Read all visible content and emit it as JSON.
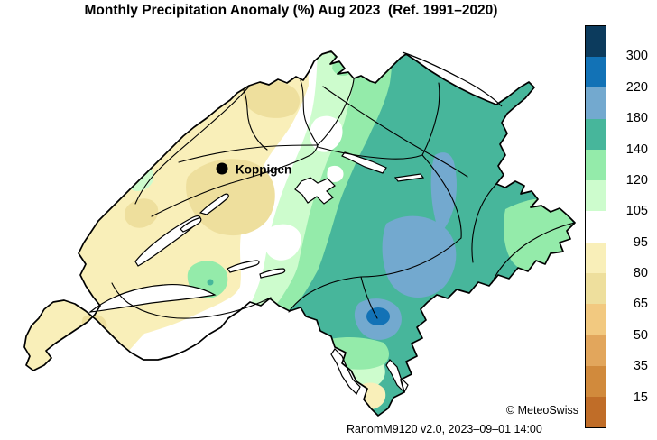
{
  "title": "Monthly Precipitation Anomaly (%) Aug 2023  (Ref. 1991–2020)",
  "map": {
    "country": "Switzerland",
    "marker": {
      "label": "Koppigen"
    }
  },
  "palette": {
    "navy": "#0c3b5d",
    "blue": "#1272b6",
    "steel_blue": "#73a9cf",
    "teal": "#47b69b",
    "green": "#94ebaa",
    "pale_green": "#cdfccd",
    "white": "#ffffff",
    "pale_yellow": "#f9efb9",
    "khaki": "#eedf9d",
    "tan": "#f2c980",
    "orange": "#e2a65c",
    "dark_orange": "#d18a3c",
    "brown": "#c06d28",
    "outline": "#000000"
  },
  "legend": {
    "band_keys": [
      "navy",
      "blue",
      "steel_blue",
      "teal",
      "green",
      "pale_green",
      "white",
      "pale_yellow",
      "khaki",
      "tan",
      "orange",
      "dark_orange",
      "brown"
    ],
    "labels": [
      "300",
      "220",
      "180",
      "140",
      "120",
      "105",
      "95",
      "80",
      "65",
      "50",
      "35",
      "15"
    ]
  },
  "footer": {
    "attribution": "© MeteoSwiss",
    "version": "RanomM9120 v2.0, 2023–09–01 14:00"
  }
}
